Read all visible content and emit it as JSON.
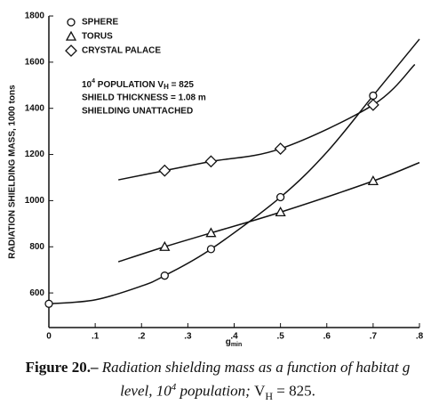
{
  "chart_data": {
    "type": "line",
    "ylabel": "RADIATION SHIELDING MASS, 1000 tons",
    "xlabel": {
      "text": "g",
      "sub": "min"
    },
    "xlim": [
      0,
      0.8
    ],
    "xticks": [
      {
        "value": 0,
        "label": "0"
      },
      {
        "value": 0.1,
        "label": ".1"
      },
      {
        "value": 0.2,
        "label": ".2"
      },
      {
        "value": 0.3,
        "label": ".3"
      },
      {
        "value": 0.4,
        "label": ".4"
      },
      {
        "value": 0.5,
        "label": ".5"
      },
      {
        "value": 0.6,
        "label": ".6"
      },
      {
        "value": 0.7,
        "label": ".7"
      },
      {
        "value": 0.8,
        "label": ".8"
      }
    ],
    "ylim": [
      450,
      1800
    ],
    "yticks": [
      600,
      800,
      1000,
      1200,
      1400,
      1600,
      1800
    ],
    "legend": "upper left",
    "color": "#111",
    "annotation": {
      "base": "10",
      "sup": "4",
      "text": " POPULATION V",
      "sub": "H",
      "tail": " = 825",
      "line2": "SHIELD THICKNESS = 1.08 m",
      "line3": "SHIELDING UNATTACHED"
    },
    "series": [
      {
        "name": "SPHERE",
        "marker": "circle",
        "x": [
          0,
          0.25,
          0.35,
          0.5,
          0.7
        ],
        "values": [
          553,
          675,
          790,
          1015,
          1455
        ],
        "curve_x": [
          0,
          0.1,
          0.2,
          0.25,
          0.35,
          0.5,
          0.6,
          0.7,
          0.8
        ],
        "curve_values": [
          553,
          570,
          630,
          675,
          790,
          1015,
          1210,
          1455,
          1700
        ]
      },
      {
        "name": "TORUS",
        "marker": "triangle",
        "x": [
          0.25,
          0.35,
          0.5,
          0.7
        ],
        "values": [
          800,
          860,
          950,
          1085
        ],
        "curve_x": [
          0.15,
          0.25,
          0.35,
          0.5,
          0.7,
          0.8
        ],
        "curve_values": [
          735,
          800,
          860,
          950,
          1085,
          1165
        ]
      },
      {
        "name": "CRYSTAL PALACE",
        "marker": "diamond",
        "x": [
          0.25,
          0.35,
          0.5,
          0.7
        ],
        "values": [
          1130,
          1170,
          1225,
          1415
        ],
        "curve_x": [
          0.15,
          0.25,
          0.35,
          0.5,
          0.7,
          0.79
        ],
        "curve_values": [
          1090,
          1130,
          1170,
          1225,
          1415,
          1590
        ]
      }
    ]
  },
  "caption": {
    "label": "Figure 20.– ",
    "text1": "Radiation shielding mass as a function of habitat g level, ",
    "base": "10",
    "sup": "4",
    "text2": " population; ",
    "v": "V",
    "sub": "H",
    "tail": " = 825."
  }
}
